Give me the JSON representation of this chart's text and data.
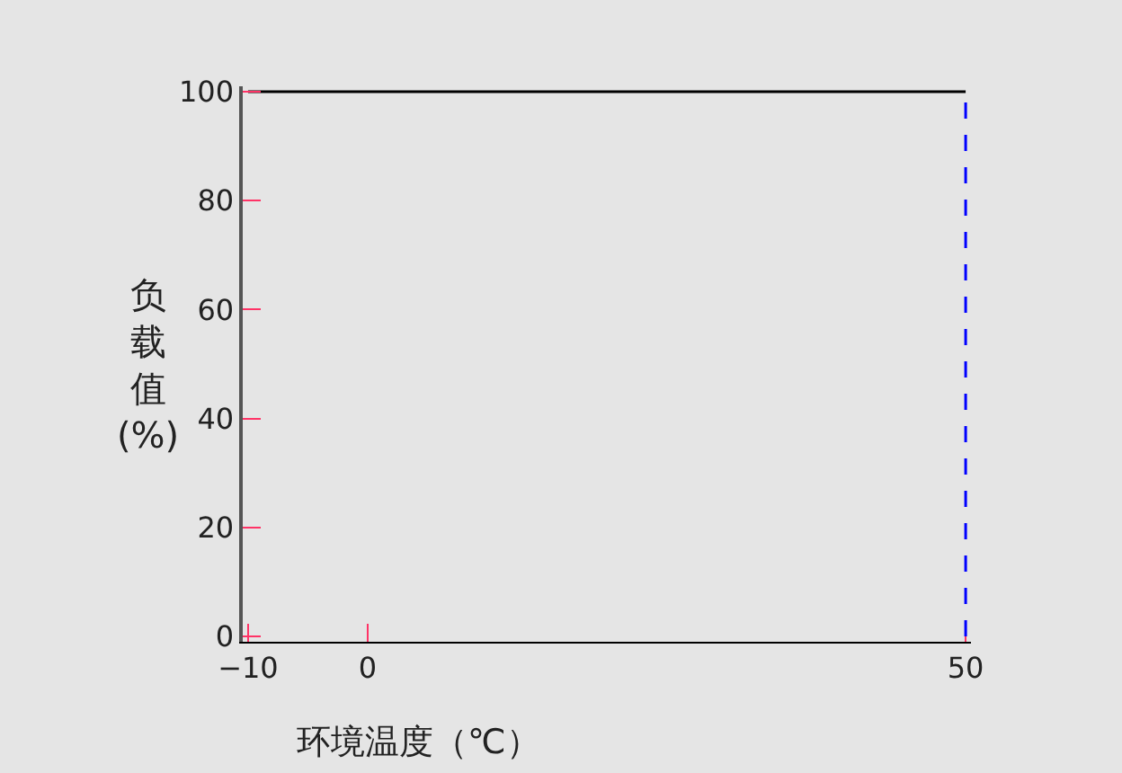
{
  "chart_data": {
    "type": "line",
    "xlabel": "环境温度（℃）",
    "ylabel": "负载值(%)",
    "x": [
      -10,
      50
    ],
    "series": [
      {
        "values": [
          100,
          100
        ],
        "color": "#000000",
        "line_style": "solid"
      }
    ],
    "ref_lines": [
      {
        "axis": "x",
        "value": 50,
        "color": "#0000ff",
        "line_style": "dashed"
      }
    ],
    "xlim": [
      -10,
      50
    ],
    "xticks": [
      -10,
      0,
      50
    ],
    "ylim": [
      0,
      100
    ],
    "yticks": [
      0,
      20,
      40,
      60,
      80,
      100
    ],
    "grid": false,
    "marker": "none"
  }
}
